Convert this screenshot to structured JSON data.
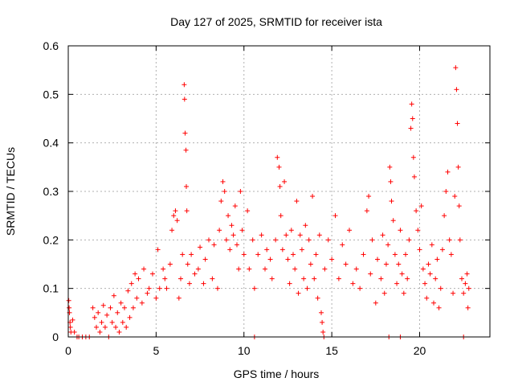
{
  "chart_data": {
    "type": "scatter",
    "title": "Day 127 of 2025, SRMTID for receiver ista",
    "xlabel": "GPS time / hours",
    "ylabel": "SRMTID / TECUs",
    "xlim": [
      0,
      24
    ],
    "ylim": [
      0,
      0.6
    ],
    "x_ticks": [
      0,
      5,
      10,
      15,
      20
    ],
    "x_tick_labels": [
      "0",
      "5",
      "10",
      "15",
      "20"
    ],
    "y_ticks": [
      0,
      0.1,
      0.2,
      0.3,
      0.4,
      0.5,
      0.6
    ],
    "y_tick_labels": [
      "0",
      "0.1",
      "0.2",
      "0.3",
      "0.4",
      "0.5",
      "0.6"
    ],
    "grid": true,
    "marker": "+",
    "series": [
      {
        "name": "SRMTID",
        "color": "#ff0000",
        "points": [
          [
            0.03,
            0.075
          ],
          [
            0.05,
            0.06
          ],
          [
            0.07,
            0.05
          ],
          [
            0.1,
            0.03
          ],
          [
            0.12,
            0.02
          ],
          [
            0.15,
            0.01
          ],
          [
            0.25,
            0.035
          ],
          [
            0.35,
            0.01
          ],
          [
            0.5,
            0.0
          ],
          [
            0.6,
            0.0
          ],
          [
            0.8,
            0.0
          ],
          [
            1.0,
            0.0
          ],
          [
            1.2,
            0.0
          ],
          [
            1.4,
            0.06
          ],
          [
            1.5,
            0.04
          ],
          [
            1.6,
            0.02
          ],
          [
            1.7,
            0.05
          ],
          [
            1.8,
            0.01
          ],
          [
            1.9,
            0.03
          ],
          [
            2.0,
            0.065
          ],
          [
            2.1,
            0.02
          ],
          [
            2.2,
            0.045
          ],
          [
            2.3,
            0.0
          ],
          [
            2.4,
            0.06
          ],
          [
            2.5,
            0.03
          ],
          [
            2.6,
            0.085
          ],
          [
            2.7,
            0.02
          ],
          [
            2.8,
            0.05
          ],
          [
            2.9,
            0.01
          ],
          [
            3.0,
            0.07
          ],
          [
            3.1,
            0.03
          ],
          [
            3.2,
            0.06
          ],
          [
            3.3,
            0.02
          ],
          [
            3.4,
            0.095
          ],
          [
            3.5,
            0.04
          ],
          [
            3.6,
            0.11
          ],
          [
            3.7,
            0.06
          ],
          [
            3.8,
            0.13
          ],
          [
            3.9,
            0.08
          ],
          [
            4.0,
            0.12
          ],
          [
            4.2,
            0.07
          ],
          [
            4.3,
            0.14
          ],
          [
            4.5,
            0.09
          ],
          [
            4.6,
            0.1
          ],
          [
            4.8,
            0.13
          ],
          [
            5.0,
            0.08
          ],
          [
            5.1,
            0.18
          ],
          [
            5.2,
            0.1
          ],
          [
            5.4,
            0.14
          ],
          [
            5.5,
            0.12
          ],
          [
            5.6,
            0.1
          ],
          [
            5.8,
            0.15
          ],
          [
            5.9,
            0.22
          ],
          [
            6.0,
            0.25
          ],
          [
            6.1,
            0.26
          ],
          [
            6.2,
            0.24
          ],
          [
            6.3,
            0.08
          ],
          [
            6.4,
            0.12
          ],
          [
            6.5,
            0.17
          ],
          [
            6.6,
            0.52
          ],
          [
            6.62,
            0.49
          ],
          [
            6.65,
            0.42
          ],
          [
            6.7,
            0.385
          ],
          [
            6.72,
            0.31
          ],
          [
            6.75,
            0.26
          ],
          [
            6.8,
            0.15
          ],
          [
            6.9,
            0.11
          ],
          [
            7.0,
            0.17
          ],
          [
            7.2,
            0.13
          ],
          [
            7.4,
            0.14
          ],
          [
            7.5,
            0.185
          ],
          [
            7.7,
            0.11
          ],
          [
            7.8,
            0.16
          ],
          [
            8.0,
            0.2
          ],
          [
            8.2,
            0.12
          ],
          [
            8.3,
            0.19
          ],
          [
            8.5,
            0.1
          ],
          [
            8.6,
            0.22
          ],
          [
            8.7,
            0.28
          ],
          [
            8.8,
            0.32
          ],
          [
            8.9,
            0.3
          ],
          [
            9.0,
            0.2
          ],
          [
            9.1,
            0.25
          ],
          [
            9.2,
            0.18
          ],
          [
            9.3,
            0.23
          ],
          [
            9.4,
            0.21
          ],
          [
            9.5,
            0.27
          ],
          [
            9.6,
            0.19
          ],
          [
            9.7,
            0.14
          ],
          [
            9.8,
            0.3
          ],
          [
            9.9,
            0.22
          ],
          [
            10.0,
            0.17
          ],
          [
            10.2,
            0.26
          ],
          [
            10.3,
            0.14
          ],
          [
            10.5,
            0.2
          ],
          [
            10.6,
            0.1
          ],
          [
            10.8,
            0.17
          ],
          [
            11.0,
            0.21
          ],
          [
            11.2,
            0.14
          ],
          [
            11.3,
            0.18
          ],
          [
            11.5,
            0.16
          ],
          [
            11.6,
            0.12
          ],
          [
            11.8,
            0.2
          ],
          [
            11.9,
            0.37
          ],
          [
            12.0,
            0.35
          ],
          [
            12.05,
            0.31
          ],
          [
            12.1,
            0.25
          ],
          [
            12.2,
            0.18
          ],
          [
            12.3,
            0.32
          ],
          [
            12.4,
            0.21
          ],
          [
            12.5,
            0.16
          ],
          [
            12.6,
            0.11
          ],
          [
            12.7,
            0.22
          ],
          [
            12.8,
            0.17
          ],
          [
            12.9,
            0.14
          ],
          [
            13.0,
            0.28
          ],
          [
            13.1,
            0.09
          ],
          [
            13.2,
            0.21
          ],
          [
            13.3,
            0.18
          ],
          [
            13.4,
            0.12
          ],
          [
            13.5,
            0.23
          ],
          [
            13.6,
            0.1
          ],
          [
            13.7,
            0.2
          ],
          [
            13.8,
            0.15
          ],
          [
            13.9,
            0.29
          ],
          [
            14.0,
            0.12
          ],
          [
            14.1,
            0.17
          ],
          [
            14.2,
            0.08
          ],
          [
            14.3,
            0.21
          ],
          [
            14.4,
            0.05
          ],
          [
            14.45,
            0.03
          ],
          [
            14.5,
            0.01
          ],
          [
            14.55,
            0.0
          ],
          [
            14.6,
            0.14
          ],
          [
            14.8,
            0.2
          ],
          [
            15.0,
            0.16
          ],
          [
            15.2,
            0.25
          ],
          [
            15.4,
            0.12
          ],
          [
            15.6,
            0.19
          ],
          [
            15.8,
            0.15
          ],
          [
            16.0,
            0.22
          ],
          [
            16.2,
            0.11
          ],
          [
            16.4,
            0.14
          ],
          [
            16.6,
            0.1
          ],
          [
            16.8,
            0.17
          ],
          [
            17.0,
            0.26
          ],
          [
            17.1,
            0.29
          ],
          [
            17.2,
            0.13
          ],
          [
            17.3,
            0.2
          ],
          [
            17.5,
            0.07
          ],
          [
            17.6,
            0.16
          ],
          [
            17.8,
            0.12
          ],
          [
            17.9,
            0.21
          ],
          [
            18.0,
            0.09
          ],
          [
            18.1,
            0.15
          ],
          [
            18.2,
            0.19
          ],
          [
            18.3,
            0.35
          ],
          [
            18.35,
            0.32
          ],
          [
            18.4,
            0.28
          ],
          [
            18.5,
            0.24
          ],
          [
            18.6,
            0.17
          ],
          [
            18.7,
            0.11
          ],
          [
            18.8,
            0.15
          ],
          [
            18.9,
            0.22
          ],
          [
            19.0,
            0.13
          ],
          [
            19.1,
            0.09
          ],
          [
            19.2,
            0.17
          ],
          [
            19.3,
            0.12
          ],
          [
            19.4,
            0.2
          ],
          [
            19.5,
            0.43
          ],
          [
            19.55,
            0.48
          ],
          [
            19.6,
            0.45
          ],
          [
            19.65,
            0.37
          ],
          [
            19.7,
            0.33
          ],
          [
            19.8,
            0.26
          ],
          [
            19.9,
            0.22
          ],
          [
            20.0,
            0.18
          ],
          [
            20.1,
            0.27
          ],
          [
            20.2,
            0.14
          ],
          [
            20.3,
            0.11
          ],
          [
            20.4,
            0.08
          ],
          [
            20.5,
            0.15
          ],
          [
            20.6,
            0.13
          ],
          [
            20.7,
            0.19
          ],
          [
            20.8,
            0.07
          ],
          [
            20.9,
            0.12
          ],
          [
            21.0,
            0.16
          ],
          [
            21.1,
            0.06
          ],
          [
            21.2,
            0.1
          ],
          [
            21.3,
            0.18
          ],
          [
            21.4,
            0.25
          ],
          [
            21.5,
            0.3
          ],
          [
            21.6,
            0.34
          ],
          [
            21.7,
            0.2
          ],
          [
            21.8,
            0.17
          ],
          [
            21.9,
            0.09
          ],
          [
            22.0,
            0.29
          ],
          [
            22.05,
            0.555
          ],
          [
            22.1,
            0.51
          ],
          [
            22.15,
            0.44
          ],
          [
            22.2,
            0.35
          ],
          [
            22.25,
            0.27
          ],
          [
            22.3,
            0.2
          ],
          [
            22.4,
            0.12
          ],
          [
            22.5,
            0.09
          ],
          [
            22.6,
            0.11
          ],
          [
            22.7,
            0.13
          ],
          [
            22.75,
            0.06
          ],
          [
            22.8,
            0.1
          ],
          [
            10.6,
            0.0
          ],
          [
            18.25,
            0.0
          ],
          [
            18.9,
            0.0
          ],
          [
            22.5,
            0.0
          ]
        ]
      }
    ]
  }
}
